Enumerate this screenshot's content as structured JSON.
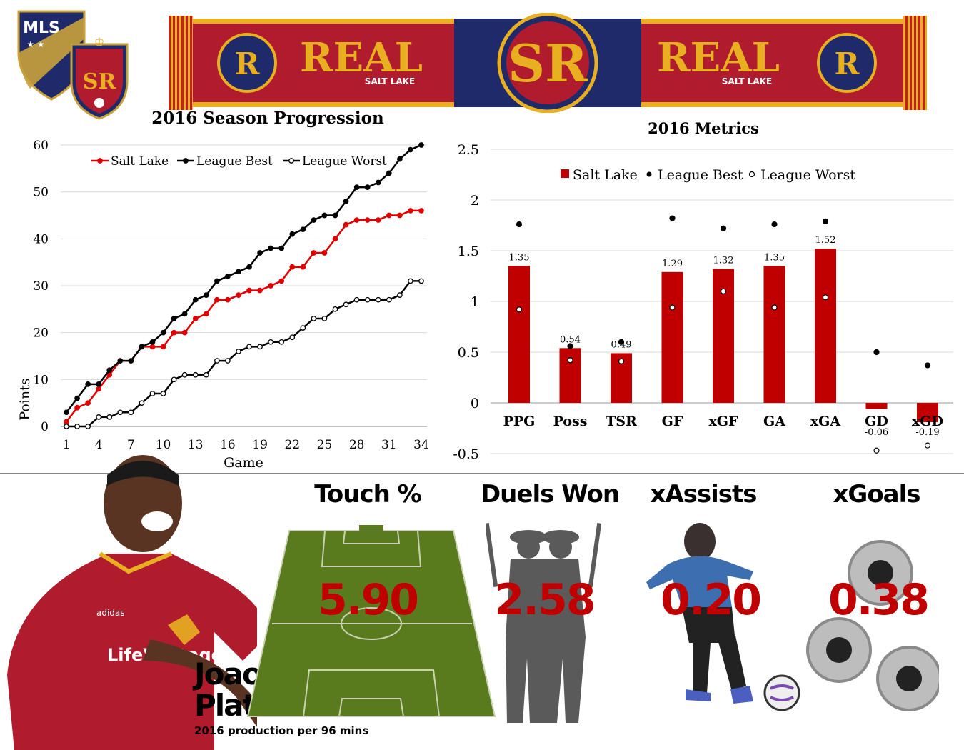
{
  "logos": {
    "mls": "MLS",
    "rsl": "SR"
  },
  "scarf": {
    "left_brand": "REAL",
    "left_sub": "SALT LAKE",
    "center": "SR",
    "right_brand": "REAL",
    "right_sub": "SALT LAKE",
    "badge_left": "R",
    "badge_right": "R"
  },
  "colors": {
    "salt_lake": "#e00000",
    "claret": "#b01c2e",
    "bar": "#c00000",
    "gold": "#e8b020",
    "navy": "#1f2a6b",
    "pitch": "#5a7a1e"
  },
  "line_chart": {
    "title": "2016 Season Progression",
    "xlabel": "Game",
    "ylabel": "Points"
  },
  "bar_chart": {
    "title": "2016 Metrics"
  },
  "chart_data": [
    {
      "type": "line",
      "title": "2016 Season Progression",
      "xlabel": "Game",
      "ylabel": "Points",
      "xlim": [
        1,
        34
      ],
      "ylim": [
        0,
        60
      ],
      "x_ticks": [
        1,
        4,
        7,
        10,
        13,
        16,
        19,
        22,
        25,
        28,
        31,
        34
      ],
      "y_ticks": [
        0,
        10,
        20,
        30,
        40,
        50,
        60
      ],
      "legend_position": "top",
      "x": [
        1,
        2,
        3,
        4,
        5,
        6,
        7,
        8,
        9,
        10,
        11,
        12,
        13,
        14,
        15,
        16,
        17,
        18,
        19,
        20,
        21,
        22,
        23,
        24,
        25,
        26,
        27,
        28,
        29,
        30,
        31,
        32,
        33,
        34
      ],
      "series": [
        {
          "name": "Salt Lake",
          "color": "#e00000",
          "marker": "filled",
          "values": [
            1,
            4,
            5,
            8,
            11,
            14,
            14,
            17,
            17,
            17,
            20,
            20,
            23,
            24,
            27,
            27,
            28,
            29,
            29,
            30,
            31,
            34,
            34,
            37,
            37,
            40,
            43,
            44,
            44,
            44,
            45,
            45,
            46,
            46
          ]
        },
        {
          "name": "League Best",
          "color": "#000000",
          "marker": "filled",
          "values": [
            3,
            6,
            9,
            9,
            12,
            14,
            14,
            17,
            18,
            20,
            23,
            24,
            27,
            28,
            31,
            32,
            33,
            34,
            37,
            38,
            38,
            41,
            42,
            44,
            45,
            45,
            48,
            51,
            51,
            52,
            54,
            57,
            59,
            60
          ]
        },
        {
          "name": "League Worst",
          "color": "#000000",
          "marker": "hollow",
          "values": [
            0,
            0,
            0,
            2,
            2,
            3,
            3,
            5,
            7,
            7,
            10,
            11,
            11,
            11,
            14,
            14,
            16,
            17,
            17,
            18,
            18,
            19,
            21,
            23,
            23,
            25,
            26,
            27,
            27,
            27,
            27,
            28,
            31,
            31
          ]
        }
      ]
    },
    {
      "type": "bar",
      "title": "2016 Metrics",
      "categories": [
        "PPG",
        "Poss",
        "TSR",
        "GF",
        "xGF",
        "GA",
        "xGA",
        "GD",
        "xGD"
      ],
      "ylim": [
        -0.5,
        2.5
      ],
      "y_ticks": [
        "2.5",
        "2",
        "1.5",
        "1",
        "0.5",
        "0",
        "-0.5"
      ],
      "legend_position": "top",
      "series": [
        {
          "name": "Salt Lake",
          "type": "bar",
          "color": "#c00000",
          "values": [
            1.35,
            0.54,
            0.49,
            1.29,
            1.32,
            1.35,
            1.52,
            -0.06,
            -0.19
          ],
          "labels": [
            "1.35",
            "0.54",
            "0.49",
            "1.29",
            "1.32",
            "1.35",
            "1.52",
            "-0.06",
            "-0.19"
          ]
        },
        {
          "name": "League Best",
          "type": "point",
          "marker": "filled",
          "values": [
            1.76,
            0.56,
            0.6,
            1.82,
            1.72,
            1.76,
            1.79,
            0.5,
            0.37
          ]
        },
        {
          "name": "League Worst",
          "type": "point",
          "marker": "hollow",
          "values": [
            0.92,
            0.42,
            0.41,
            0.94,
            1.1,
            0.94,
            1.04,
            -0.47,
            -0.42
          ]
        }
      ]
    }
  ],
  "stats": [
    {
      "title": "Touch %",
      "value": "5.90",
      "icon": "soccer-pitch-icon"
    },
    {
      "title": "Duels Won",
      "value": "2.58",
      "icon": "duelists-silhouette-icon"
    },
    {
      "title": "xAssists",
      "value": "0.20",
      "icon": "player-kicking-icon"
    },
    {
      "title": "xGoals",
      "value": "0.38",
      "icon": "bullet-holes-icon"
    }
  ],
  "player": {
    "first_name": "Joao",
    "last_name": "Plata",
    "subtitle": "2016 production per 96 mins",
    "sponsor": "LifeVantage",
    "kit_brand": "adidas"
  }
}
